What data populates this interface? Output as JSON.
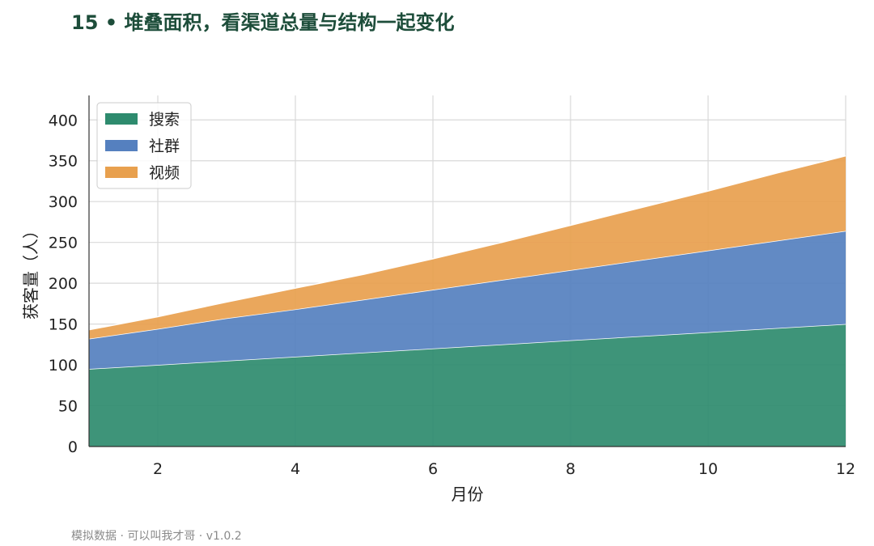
{
  "header": {
    "title": "15 • 堆叠面积，看渠道总量与结构一起变化"
  },
  "footer": {
    "text": "模拟数据 · 可以叫我才哥 · v1.0.2"
  },
  "chart_data": {
    "type": "area",
    "stacked": true,
    "xlabel": "月份",
    "ylabel": "获客量（人）",
    "x": [
      1,
      2,
      3,
      4,
      5,
      6,
      7,
      8,
      9,
      10,
      11,
      12
    ],
    "xlim": [
      1,
      12
    ],
    "ylim": [
      0,
      430
    ],
    "xticks": [
      2,
      4,
      6,
      8,
      10,
      12
    ],
    "yticks": [
      0,
      50,
      100,
      150,
      200,
      250,
      300,
      350,
      400
    ],
    "grid": true,
    "legend_position": "top-left",
    "series": [
      {
        "name": "搜索",
        "color": "#2e8b6e",
        "values": [
          95,
          100,
          105,
          110,
          115,
          120,
          125,
          130,
          135,
          140,
          145,
          150
        ]
      },
      {
        "name": "社群",
        "color": "#5580bf",
        "values": [
          37,
          44,
          52,
          58,
          65,
          72,
          79,
          86,
          93,
          100,
          107,
          114
        ]
      },
      {
        "name": "视频",
        "color": "#e8a04e",
        "values": [
          11,
          15,
          20,
          26,
          31,
          38,
          46,
          55,
          64,
          73,
          83,
          92
        ]
      }
    ]
  }
}
